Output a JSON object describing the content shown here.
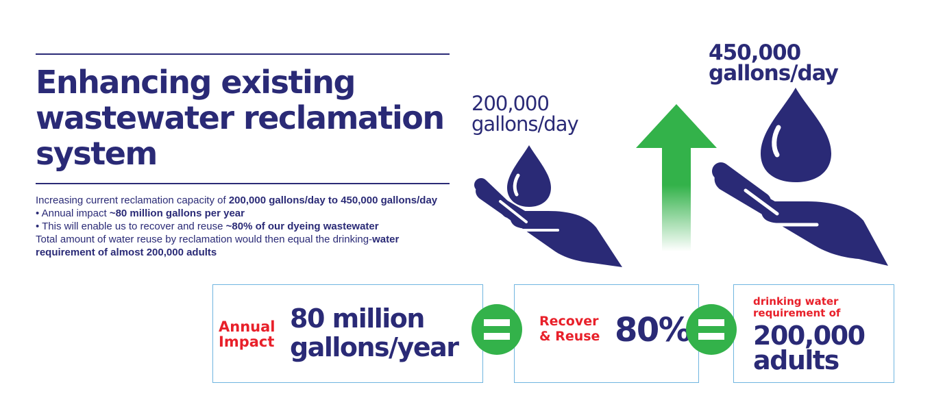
{
  "title_lines": [
    "Enhancing existing",
    "wastewater reclamation",
    "system"
  ],
  "body": {
    "p1_pre": "Increasing current reclamation capacity of ",
    "p1_bold": "200,000 gallons/day to 450,000 gallons/day",
    "p2_pre": "• Annual impact ",
    "p2_bold": "~80 million gallons per year",
    "p3_pre": "• This will enable us to recover and reuse ",
    "p3_bold": "~80% of our dyeing wastewater",
    "p4_pre": "Total amount of water reuse by reclamation would then equal the drinking-",
    "p4_bold": "water requirement of almost 200,000 adults"
  },
  "left_label": [
    "200,000",
    "gallons/day"
  ],
  "right_label": [
    "450,000",
    "gallons/day"
  ],
  "box1": {
    "label": [
      "Annual",
      "Impact"
    ],
    "value": [
      "80 million",
      "gallons/year"
    ]
  },
  "box2": {
    "label": [
      "Recover",
      "& Reuse"
    ],
    "value": "80%"
  },
  "box3": {
    "label": [
      "drinking water",
      "requirement of"
    ],
    "value": [
      "200,000",
      "adults"
    ]
  },
  "colors": {
    "navy": "#2a2a76",
    "red": "#e8202a",
    "green": "#33b24a",
    "box_border": "#6fb5e0"
  },
  "icons": [
    "water-drop-hand-icon",
    "up-arrow-icon",
    "equals-icon"
  ]
}
